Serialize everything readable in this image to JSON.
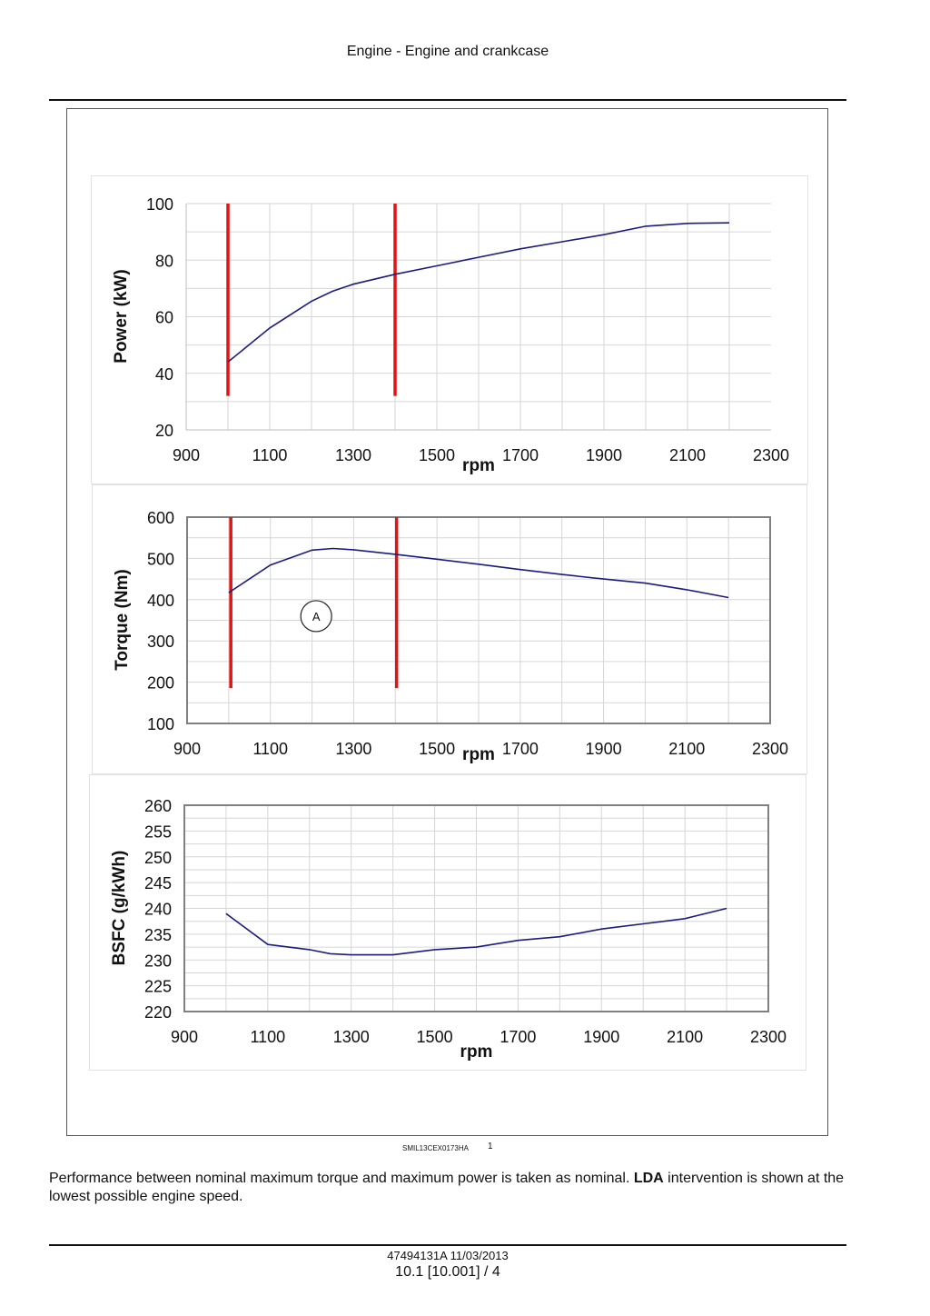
{
  "header": {
    "title": "Engine - Engine and crankcase"
  },
  "figure": {
    "id": "SMIL13CEX0173HA",
    "number": "1"
  },
  "caption": {
    "text_before": "Performance between nominal maximum torque and maximum power is taken as nominal. ",
    "bold": "LDA",
    "text_after": " intervention is shown at the lowest possible engine speed."
  },
  "footer": {
    "doc": "47494131A 11/03/2013",
    "page": "10.1 [10.001] / 4"
  },
  "chart_data": [
    {
      "type": "line",
      "ylabel": "Power (kW)",
      "xlabel": "rpm",
      "xlim": [
        900,
        2300
      ],
      "ylim": [
        20,
        100
      ],
      "xticks": [
        900,
        1100,
        1300,
        1500,
        1700,
        1900,
        2100,
        2300
      ],
      "yticks": [
        20,
        40,
        60,
        80,
        100
      ],
      "grid": true,
      "frame": false,
      "series": [
        {
          "x": [
            1000,
            1100,
            1200,
            1250,
            1300,
            1400,
            1500,
            1600,
            1700,
            1800,
            1900,
            2000,
            2100,
            2200
          ],
          "y": [
            44,
            56,
            65.5,
            69,
            71.5,
            75,
            78,
            81,
            84,
            86.5,
            89,
            92,
            93,
            93.2
          ]
        }
      ],
      "vlines": [
        {
          "x": 1000,
          "y_from": 32,
          "y_to": 100
        },
        {
          "x": 1400,
          "y_from": 32,
          "y_to": 100
        }
      ],
      "colors": {
        "line": "#1c1c80",
        "marker_lines": "#e01414",
        "grid": "#d6d6d6"
      }
    },
    {
      "type": "line",
      "ylabel": "Torque (Nm)",
      "xlabel": "rpm",
      "xlim": [
        900,
        2300
      ],
      "ylim": [
        100,
        600
      ],
      "xticks": [
        900,
        1100,
        1300,
        1500,
        1700,
        1900,
        2100,
        2300
      ],
      "yticks": [
        100,
        200,
        300,
        400,
        500,
        600
      ],
      "grid": true,
      "frame": true,
      "series": [
        {
          "x": [
            1000,
            1100,
            1200,
            1250,
            1300,
            1400,
            1500,
            1600,
            1700,
            1800,
            1900,
            2000,
            2100,
            2200
          ],
          "y": [
            417,
            484,
            520,
            524,
            521,
            510,
            498,
            486,
            473,
            461,
            450,
            440,
            424,
            405
          ]
        }
      ],
      "vlines": [
        {
          "x": 1005,
          "y_from": 186,
          "y_to": 600
        },
        {
          "x": 1403,
          "y_from": 186,
          "y_to": 600
        }
      ],
      "annotations": [
        {
          "text": "A",
          "x": 1210,
          "y": 360
        }
      ],
      "colors": {
        "line": "#1c1c80",
        "marker_lines": "#e01414",
        "grid": "#d6d6d6"
      }
    },
    {
      "type": "line",
      "ylabel": "BSFC (g/kWh)",
      "xlabel": "rpm",
      "xlim": [
        900,
        2300
      ],
      "ylim": [
        220,
        260
      ],
      "xticks": [
        900,
        1100,
        1300,
        1500,
        1700,
        1900,
        2100,
        2300
      ],
      "yticks": [
        220,
        225,
        230,
        235,
        240,
        245,
        250,
        255,
        260
      ],
      "grid": true,
      "frame": true,
      "series": [
        {
          "x": [
            1000,
            1100,
            1200,
            1250,
            1300,
            1400,
            1500,
            1600,
            1700,
            1800,
            1900,
            2000,
            2100,
            2200
          ],
          "y": [
            239,
            233,
            232,
            231.2,
            231,
            231,
            232,
            232.5,
            233.8,
            234.5,
            236,
            237,
            238,
            240
          ]
        }
      ],
      "colors": {
        "line": "#1c1c80",
        "grid": "#d6d6d6"
      }
    }
  ]
}
